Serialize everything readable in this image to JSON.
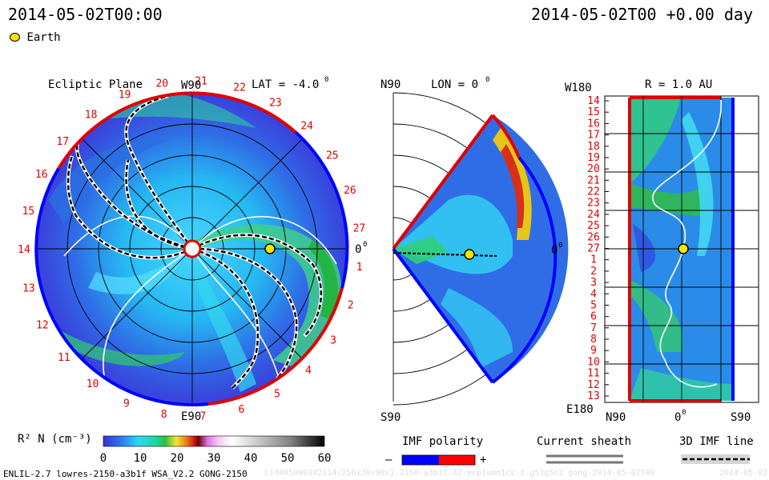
{
  "header": {
    "time_left": "2014-05-02T00:00",
    "time_right": "2014-05-02T00 +0.00 day",
    "legend_earth": "Earth"
  },
  "panels": {
    "ecliptic": {
      "title": "Ecliptic Plane",
      "top_label": "W90",
      "bottom_label": "E90",
      "right_label": "0",
      "lat_label": "LAT = -4.0",
      "deg": "0",
      "carrington_numbers": [
        "27",
        "1",
        "2",
        "3",
        "4",
        "5",
        "6",
        "7",
        "8",
        "9",
        "10",
        "11",
        "12",
        "13",
        "14",
        "15",
        "16",
        "17",
        "18",
        "19",
        "20",
        "21",
        "22",
        "23",
        "24",
        "25",
        "26"
      ]
    },
    "meridional": {
      "top_label": "N90",
      "bottom_label": "S90",
      "lon_label": "LON = 0",
      "deg": "0",
      "right_label": "0"
    },
    "sphere": {
      "r_label": "R = 1.0 AU",
      "top_left": "W180",
      "bottom_left": "E180",
      "bottom_ticks": [
        "N90",
        "0",
        "S90"
      ],
      "deg": "0",
      "row_labels": [
        "14",
        "15",
        "16",
        "17",
        "18",
        "19",
        "20",
        "21",
        "22",
        "23",
        "24",
        "25",
        "26",
        "27",
        "1",
        "2",
        "3",
        "4",
        "5",
        "6",
        "7",
        "8",
        "9",
        "10",
        "11",
        "12",
        "13"
      ]
    }
  },
  "colorbar": {
    "title": "R² N (cm⁻³)",
    "ticks": [
      "0",
      "10",
      "20",
      "30",
      "40",
      "50",
      "60"
    ]
  },
  "legends": {
    "imf_polarity": "IMF polarity",
    "imf_minus": "–",
    "imf_plus": "+",
    "current_sheath": "Current sheath",
    "imf_line": "3D IMF line"
  },
  "footer": {
    "left": "ENLIL-2.7 lowres-2150-a3b1f WSA_V2.2 GONG-2150",
    "center": "LI4005000302114/256x30x90x1.2150-a3b1f.32-mcp1umn1cs-1.g53g5c2 gong-2014-05-02T00",
    "right": "2014-05-02"
  },
  "chart_data": [
    {
      "type": "heatmap",
      "panel": "ecliptic",
      "title": "Ecliptic Plane",
      "quantity": "R² N (cm⁻³)",
      "color_range": [
        0,
        60
      ],
      "earth_position": "0° longitude, 1 AU"
    },
    {
      "type": "heatmap",
      "panel": "meridional",
      "quantity": "R² N (cm⁻³)",
      "color_range": [
        0,
        60
      ]
    },
    {
      "type": "heatmap",
      "panel": "sphere",
      "quantity": "R² N (cm⁻³)",
      "color_range": [
        0,
        60
      ]
    }
  ],
  "colors": {
    "accent_red": "#e00000",
    "polarity_negative": "#0000ff",
    "polarity_positive": "#ff0000",
    "earth": "#f5e600"
  }
}
